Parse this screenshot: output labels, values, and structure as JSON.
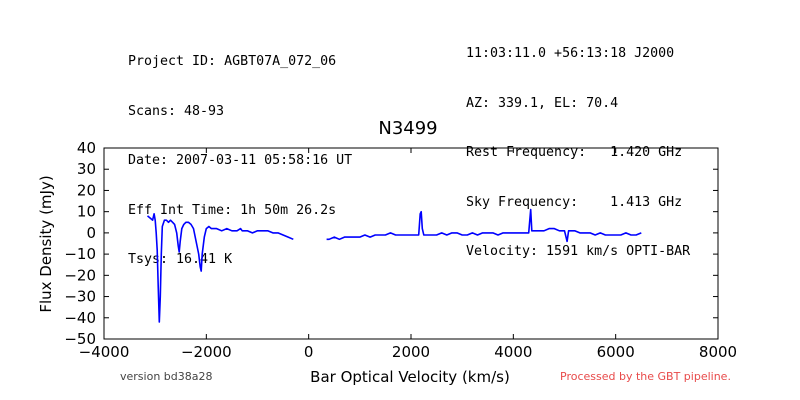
{
  "header_left": [
    "Project ID: AGBT07A_072_06",
    "Scans: 48-93",
    "Date: 2007-03-11 05:58:16 UT",
    "Eff Int Time: 1h 50m 26.2s",
    "Tsys: 16.41 K"
  ],
  "header_right": [
    "11:03:11.0 +56:13:18 J2000",
    "AZ: 339.1, EL: 70.4",
    "Rest Frequency:   1.420 GHz",
    "Sky Frequency:    1.413 GHz",
    "Velocity: 1591 km/s OPTI-BAR"
  ],
  "footer": {
    "version": "version bd38a28",
    "pipeline": "Processed by the GBT pipeline.",
    "pipeline_color": "#e84a4a"
  },
  "chart_data": {
    "type": "line",
    "title": "N3499",
    "xlabel": "Bar Optical Velocity (km/s)",
    "ylabel": "Flux Density (mJy)",
    "xlim": [
      -4000,
      8000
    ],
    "ylim": [
      -50,
      40
    ],
    "xticks": [
      "−4000",
      "−2000",
      "0",
      "2000",
      "4000",
      "6000",
      "8000"
    ],
    "yticks": [
      "−50",
      "−40",
      "−30",
      "−20",
      "−10",
      "0",
      "10",
      "20",
      "30",
      "40"
    ],
    "xtick_values": [
      -4000,
      -2000,
      0,
      2000,
      4000,
      6000,
      8000
    ],
    "ytick_values": [
      -50,
      -40,
      -30,
      -20,
      -10,
      0,
      10,
      20,
      30,
      40
    ],
    "grid": false,
    "series_color": "#0000ff",
    "series": [
      {
        "values_xy": [
          [
            -3150,
            8
          ],
          [
            -3100,
            7
          ],
          [
            -3050,
            6
          ],
          [
            -3020,
            9
          ],
          [
            -3000,
            6
          ],
          [
            -2980,
            0
          ],
          [
            -2960,
            -8
          ],
          [
            -2940,
            -25
          ],
          [
            -2920,
            -42
          ],
          [
            -2900,
            -30
          ],
          [
            -2880,
            -10
          ],
          [
            -2860,
            3
          ],
          [
            -2820,
            6
          ],
          [
            -2780,
            6
          ],
          [
            -2740,
            5
          ],
          [
            -2700,
            6
          ],
          [
            -2660,
            5
          ],
          [
            -2620,
            4
          ],
          [
            -2580,
            0
          ],
          [
            -2550,
            -6
          ],
          [
            -2530,
            -9
          ],
          [
            -2510,
            -4
          ],
          [
            -2480,
            2
          ],
          [
            -2440,
            4
          ],
          [
            -2400,
            5
          ],
          [
            -2350,
            5
          ],
          [
            -2300,
            4
          ],
          [
            -2250,
            2
          ],
          [
            -2200,
            -4
          ],
          [
            -2150,
            -10
          ],
          [
            -2120,
            -16
          ],
          [
            -2100,
            -18
          ],
          [
            -2080,
            -10
          ],
          [
            -2040,
            -2
          ],
          [
            -2000,
            2
          ],
          [
            -1950,
            3
          ],
          [
            -1900,
            2
          ],
          [
            -1800,
            2
          ],
          [
            -1700,
            1
          ],
          [
            -1600,
            2
          ],
          [
            -1500,
            1
          ],
          [
            -1400,
            1
          ],
          [
            -1330,
            2
          ],
          [
            -1300,
            1
          ],
          [
            -1200,
            1
          ],
          [
            -1100,
            0
          ],
          [
            -1000,
            1
          ],
          [
            -900,
            1
          ],
          [
            -800,
            1
          ],
          [
            -700,
            0
          ],
          [
            -600,
            0
          ],
          [
            -500,
            -1
          ],
          [
            -400,
            -2
          ],
          [
            -300,
            -3
          ],
          [
            null,
            null
          ],
          [
            350,
            -3
          ],
          [
            400,
            -3
          ],
          [
            500,
            -2
          ],
          [
            600,
            -3
          ],
          [
            700,
            -2
          ],
          [
            800,
            -2
          ],
          [
            900,
            -2
          ],
          [
            1000,
            -2
          ],
          [
            1100,
            -1
          ],
          [
            1200,
            -2
          ],
          [
            1300,
            -1
          ],
          [
            1400,
            -1
          ],
          [
            1500,
            -1
          ],
          [
            1600,
            0
          ],
          [
            1700,
            -1
          ],
          [
            1800,
            -1
          ],
          [
            1900,
            -1
          ],
          [
            2000,
            -1
          ],
          [
            2100,
            -1
          ],
          [
            2150,
            -1
          ],
          [
            2180,
            9
          ],
          [
            2200,
            10
          ],
          [
            2220,
            2
          ],
          [
            2250,
            -1
          ],
          [
            2300,
            -1
          ],
          [
            2400,
            -1
          ],
          [
            2500,
            -1
          ],
          [
            2600,
            0
          ],
          [
            2700,
            -1
          ],
          [
            2800,
            0
          ],
          [
            2900,
            0
          ],
          [
            3000,
            -1
          ],
          [
            3100,
            -1
          ],
          [
            3200,
            0
          ],
          [
            3300,
            -1
          ],
          [
            3400,
            0
          ],
          [
            3500,
            0
          ],
          [
            3600,
            0
          ],
          [
            3700,
            -1
          ],
          [
            3800,
            0
          ],
          [
            3900,
            0
          ],
          [
            4000,
            0
          ],
          [
            4100,
            0
          ],
          [
            4200,
            0
          ],
          [
            4300,
            0
          ],
          [
            4340,
            11
          ],
          [
            4360,
            1
          ],
          [
            4400,
            1
          ],
          [
            4500,
            1
          ],
          [
            4600,
            1
          ],
          [
            4700,
            2
          ],
          [
            4800,
            2
          ],
          [
            4900,
            1
          ],
          [
            5000,
            1
          ],
          [
            5050,
            -4
          ],
          [
            5080,
            1
          ],
          [
            5200,
            1
          ],
          [
            5300,
            0
          ],
          [
            5400,
            0
          ],
          [
            5500,
            0
          ],
          [
            5600,
            -1
          ],
          [
            5700,
            0
          ],
          [
            5800,
            -1
          ],
          [
            5900,
            -1
          ],
          [
            6000,
            -1
          ],
          [
            6100,
            -1
          ],
          [
            6200,
            0
          ],
          [
            6300,
            -1
          ],
          [
            6400,
            -1
          ],
          [
            6500,
            0
          ]
        ]
      }
    ]
  }
}
